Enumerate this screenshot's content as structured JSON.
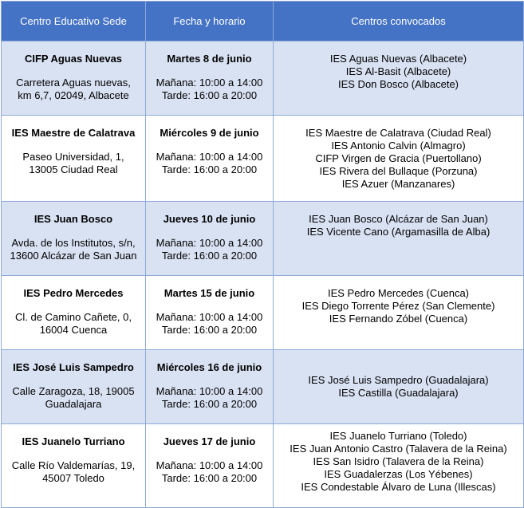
{
  "header": {
    "col1": "Centro Educativo Sede",
    "col2": "Fecha y horario",
    "col3": "Centros convocados"
  },
  "rows": [
    {
      "sede_name": "CIFP Aguas Nuevas",
      "sede_address": [
        "Carretera Aguas nuevas,",
        "km 6,7, 02049, Albacete"
      ],
      "date": "Martes 8 de junio",
      "morning": "Mañana: 10:00 a 14:00",
      "afternoon": "Tarde: 16:00 a 20:00",
      "centros": [
        "IES Aguas Nuevas (Albacete)",
        "IES Al-Basit (Albacete)",
        "IES Don Bosco (Albacete)"
      ]
    },
    {
      "sede_name": "IES Maestre de Calatrava",
      "sede_address": [
        "Paseo Universidad, 1,",
        "13005 Ciudad Real"
      ],
      "date": "Miércoles 9 de junio",
      "morning": "Mañana: 10:00 a 14:00",
      "afternoon": "Tarde: 16:00 a 20:00",
      "centros": [
        "IES Maestre de Calatrava (Ciudad Real)",
        "IES Antonio Calvin (Almagro)",
        "CIFP Virgen de Gracia (Puertollano)",
        "IES Rivera del Bullaque (Porzuna)",
        "IES Azuer (Manzanares)"
      ]
    },
    {
      "sede_name": "IES Juan Bosco",
      "sede_address": [
        "Avda. de los Institutos, s/n,",
        "13600 Alcázar de San Juan"
      ],
      "date": "Jueves 10 de junio",
      "morning": "Mañana: 10:00 a 14:00",
      "afternoon": "Tarde: 16:00 a 20:00",
      "centros": [
        "IES Juan Bosco (Alcázar de San Juan)",
        "IES Vicente Cano (Argamasilla de Alba)"
      ]
    },
    {
      "sede_name": "IES Pedro Mercedes",
      "sede_address": [
        "Cl. de Camino Cañete, 0,",
        "16004 Cuenca"
      ],
      "date": "Martes 15 de junio",
      "morning": "Mañana: 10:00 a 14:00",
      "afternoon": "Tarde: 16:00 a 20:00",
      "centros": [
        "IES Pedro Mercedes (Cuenca)",
        "IES Diego Torrente Pérez (San Clemente)",
        "IES Fernando Zóbel (Cuenca)"
      ]
    },
    {
      "sede_name": "IES José Luis Sampedro",
      "sede_address": [
        "Calle Zaragoza, 18, 19005",
        "Guadalajara"
      ],
      "date": "Miércoles 16 de junio",
      "morning": "Mañana: 10:00 a 14:00",
      "afternoon": "Tarde: 16:00 a 20:00",
      "centros": [
        "IES José Luis Sampedro (Guadalajara)",
        "IES Castilla (Guadalajara)"
      ]
    },
    {
      "sede_name": "IES Juanelo Turriano",
      "sede_address": [
        "Calle Río Valdemarías, 19,",
        "45007 Toledo"
      ],
      "date": "Jueves 17 de junio",
      "morning": "Mañana: 10:00 a 14:00",
      "afternoon": "Tarde: 16:00 a 20:00",
      "centros": [
        "IES Juanelo Turriano (Toledo)",
        "IES Juan Antonio Castro (Talavera de la Reina)",
        "IES San Isidro (Talavera de la Reina)",
        "IES Guadalerzas (Los Yébenes)",
        "IES Condestable Álvaro de Luna (Illescas)"
      ]
    }
  ],
  "colors": {
    "header_bg": "#4472c4",
    "row_shade": "#d9e2f3",
    "border": "#8eaadb"
  }
}
